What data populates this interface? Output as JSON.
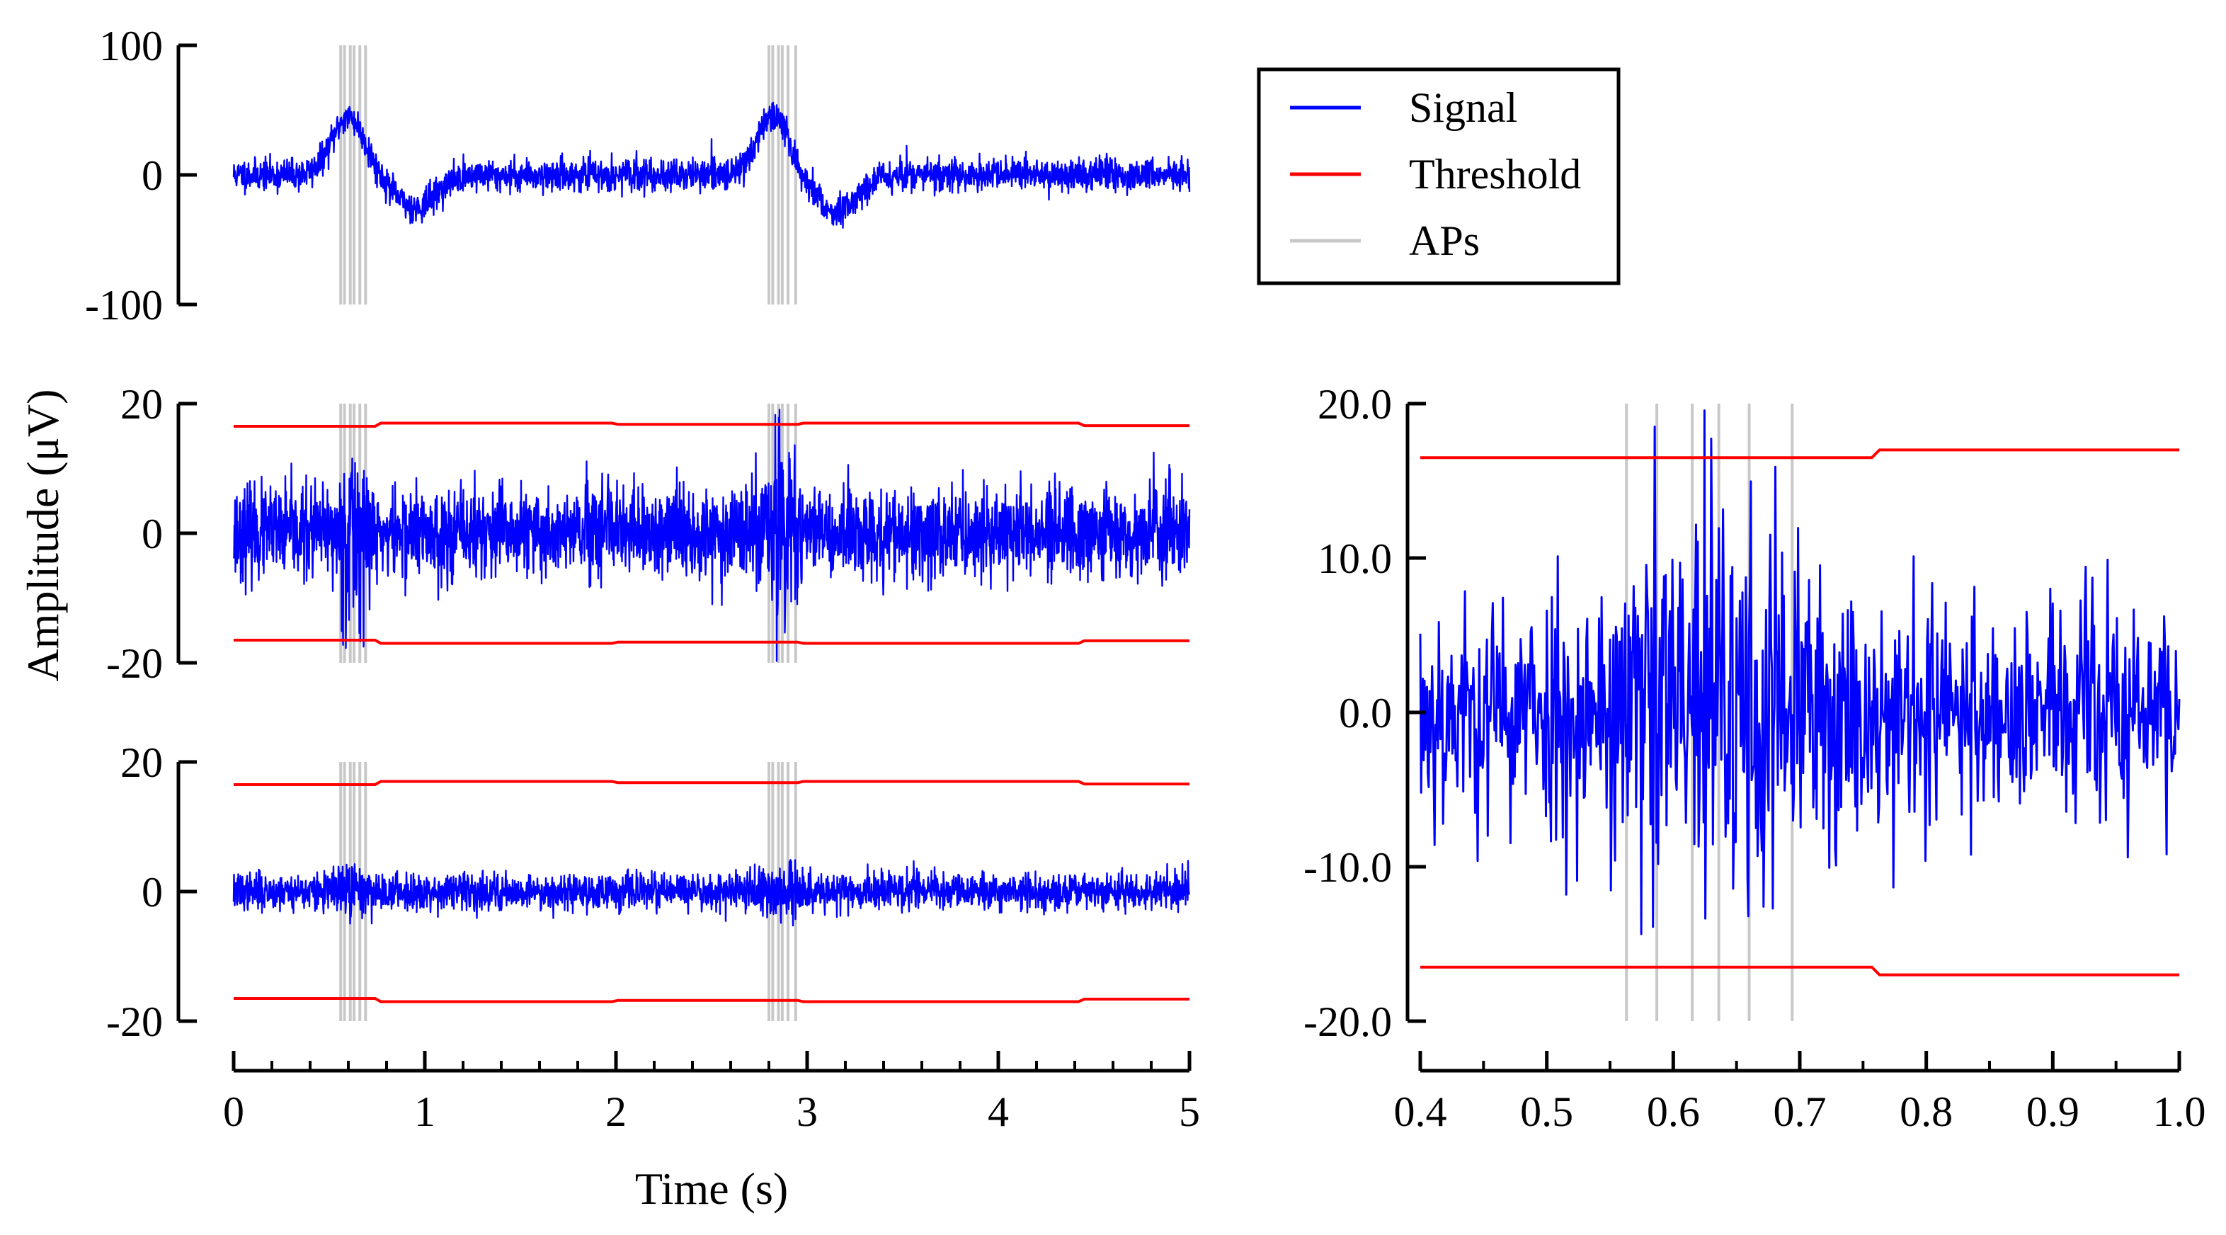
{
  "chart_data": [
    {
      "type": "line",
      "panel": "raw-signal",
      "xlim": [
        0,
        5
      ],
      "ylim": [
        -100,
        100
      ],
      "yticks": [
        "100",
        "0",
        "-100"
      ],
      "series": [
        {
          "name": "Signal",
          "color": "#0000ff",
          "noise_sd": 6,
          "waves": [
            {
              "center": 0.6,
              "width": 0.12,
              "amplitude": 45
            },
            {
              "center": 0.95,
              "width": 0.15,
              "amplitude": -25
            },
            {
              "center": 2.82,
              "width": 0.12,
              "amplitude": 45
            },
            {
              "center": 3.15,
              "width": 0.15,
              "amplitude": -28
            }
          ]
        },
        {
          "name": "APs",
          "color": "#c8c8c8",
          "x": [
            0.56,
            0.58,
            0.61,
            0.63,
            0.66,
            0.69,
            2.8,
            2.82,
            2.85,
            2.87,
            2.9,
            2.94
          ]
        }
      ]
    },
    {
      "type": "line",
      "panel": "filtered-signal",
      "xlim": [
        0,
        5
      ],
      "ylim": [
        -20,
        20
      ],
      "yticks": [
        "20",
        "0",
        "-20"
      ],
      "series": [
        {
          "name": "Signal",
          "color": "#0000ff",
          "noise_sd": 3.5,
          "bursts": [
            {
              "center": 0.62,
              "width": 0.08,
              "gain": 2.2
            },
            {
              "center": 2.86,
              "width": 0.08,
              "gain": 2.2
            }
          ]
        },
        {
          "name": "Threshold",
          "color": "#ff0000",
          "x": [
            0,
            0.74,
            0.77,
            1.98,
            2.01,
            2.95,
            2.98,
            4.42,
            4.45,
            5
          ],
          "y": [
            16.5,
            16.5,
            17,
            17,
            16.8,
            16.8,
            17,
            17,
            16.6,
            16.6
          ]
        },
        {
          "name": "APs",
          "color": "#c8c8c8",
          "x": [
            0.56,
            0.58,
            0.61,
            0.63,
            0.66,
            0.69,
            2.8,
            2.82,
            2.85,
            2.87,
            2.9,
            2.94
          ]
        }
      ]
    },
    {
      "type": "line",
      "panel": "residual-signal",
      "xlim": [
        0,
        5
      ],
      "ylim": [
        -20,
        20
      ],
      "yticks": [
        "20",
        "0",
        "-20"
      ],
      "series": [
        {
          "name": "Signal",
          "color": "#0000ff",
          "noise_sd": 1.4,
          "bursts": [
            {
              "center": 0.62,
              "width": 0.08,
              "gain": 1.7
            },
            {
              "center": 2.86,
              "width": 0.08,
              "gain": 1.9
            }
          ]
        },
        {
          "name": "Threshold",
          "color": "#ff0000",
          "x": [
            0,
            0.74,
            0.77,
            1.98,
            2.01,
            2.95,
            2.98,
            4.42,
            4.45,
            5
          ],
          "y": [
            16.5,
            16.5,
            17,
            17,
            16.8,
            16.8,
            17,
            17,
            16.6,
            16.6
          ]
        },
        {
          "name": "APs",
          "color": "#c8c8c8",
          "x": [
            0.56,
            0.58,
            0.61,
            0.63,
            0.66,
            0.69,
            2.8,
            2.82,
            2.85,
            2.87,
            2.9,
            2.94
          ]
        }
      ]
    },
    {
      "type": "line",
      "panel": "zoom",
      "xlim": [
        0.4,
        1.0
      ],
      "ylim": [
        -20,
        20
      ],
      "xticks": [
        "0.4",
        "0.5",
        "0.6",
        "0.7",
        "0.8",
        "0.9",
        "1.0"
      ],
      "yticks": [
        "20.0",
        "10.0",
        "0.0",
        "-10.0",
        "-20.0"
      ],
      "series": [
        {
          "name": "Signal",
          "color": "#0000ff",
          "noise_sd": 3.6,
          "bursts": [
            {
              "center": 0.63,
              "width": 0.08,
              "gain": 2.2
            }
          ]
        },
        {
          "name": "Threshold",
          "color": "#ff0000",
          "x": [
            0.4,
            0.757,
            0.763,
            1.0
          ],
          "y": [
            16.5,
            16.5,
            17,
            17
          ]
        },
        {
          "name": "APs",
          "color": "#c8c8c8",
          "x": [
            0.563,
            0.587,
            0.615,
            0.636,
            0.66,
            0.694
          ]
        }
      ]
    }
  ],
  "axes": {
    "xlabel": "Time (s)",
    "ylabel": "Amplitude (μV)",
    "xticks": [
      "0",
      "1",
      "2",
      "3",
      "4",
      "5"
    ]
  },
  "legend": {
    "position": "top-right",
    "items": [
      {
        "label": "Signal",
        "color": "#0000ff"
      },
      {
        "label": "Threshold",
        "color": "#ff0000"
      },
      {
        "label": "APs",
        "color": "#c8c8c8"
      }
    ]
  }
}
